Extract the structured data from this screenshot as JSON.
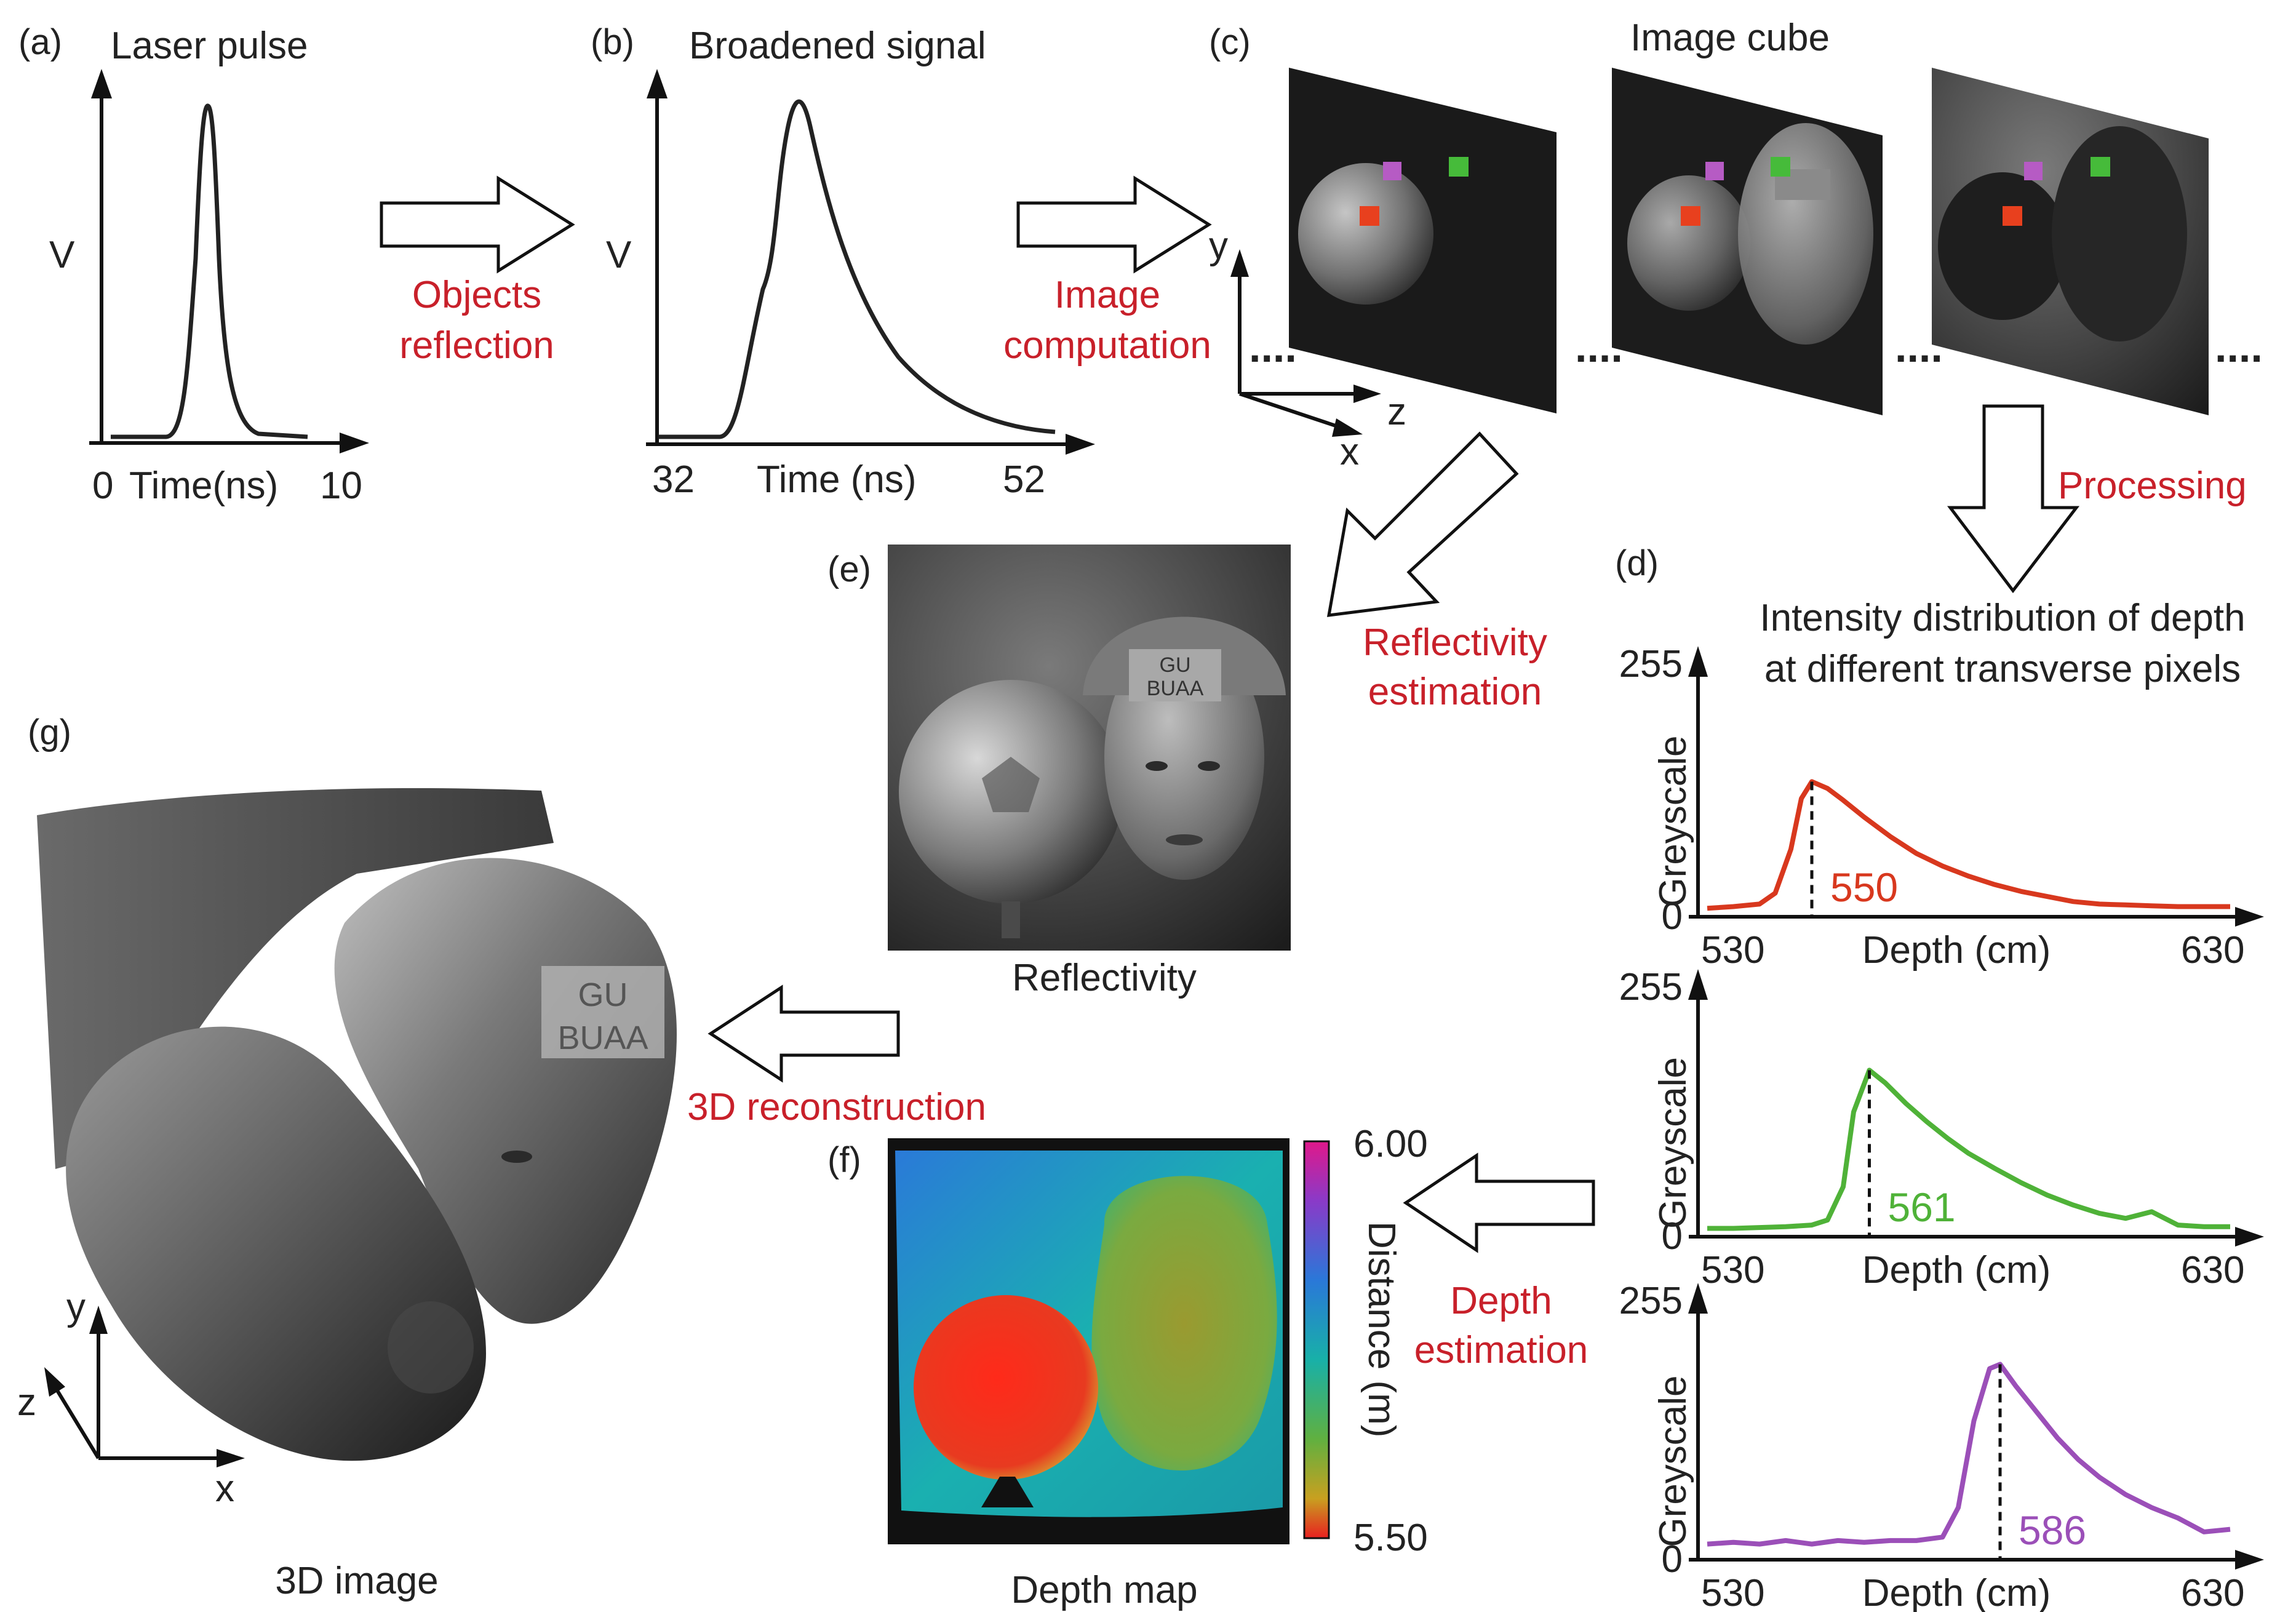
{
  "panels": {
    "a": {
      "tag": "(a)",
      "title": "Laser pulse",
      "ylabel": "V",
      "x_start": "0",
      "xlabel": "Time(ns)",
      "x_end": "10"
    },
    "b": {
      "tag": "(b)",
      "title": "Broadened signal",
      "ylabel": "V",
      "x_start": "32",
      "xlabel": "Time (ns)",
      "x_end": "52"
    },
    "c": {
      "tag": "(c)",
      "title": "Image cube",
      "axis_y": "y",
      "axis_z": "z",
      "axis_x": "x",
      "ellipsis": "...."
    },
    "d": {
      "tag": "(d)",
      "title_line1": "Intensity distribution of depth",
      "title_line2": "at different transverse pixels"
    },
    "e": {
      "tag": "(e)",
      "caption": "Reflectivity",
      "helmet_text_1": "GU",
      "helmet_text_2": "BUAA"
    },
    "f": {
      "tag": "(f)",
      "caption": "Depth map",
      "colorbar_top": "6.00",
      "colorbar_bottom": "5.50",
      "colorbar_label": "Distance (m)"
    },
    "g": {
      "tag": "(g)",
      "caption": "3D image",
      "axis_y": "y",
      "axis_z": "z",
      "axis_x": "x",
      "helmet_text_1": "GU",
      "helmet_text_2": "BUAA"
    }
  },
  "arrows": {
    "objects_reflection_1": "Objects",
    "objects_reflection_2": "reflection",
    "image_computation_1": "Image",
    "image_computation_2": "computation",
    "processing": "Processing",
    "reflectivity_estimation_1": "Reflectivity",
    "reflectivity_estimation_2": "estimation",
    "reconstruction": "3D reconstruction",
    "depth_estimation_1": "Depth",
    "depth_estimation_2": "estimation"
  },
  "chart_data": [
    {
      "type": "line",
      "name": "depth-profile-red",
      "ylabel": "Greyscale",
      "xlabel": "Depth (cm)",
      "y_ticks": [
        "255",
        "0"
      ],
      "x_ticks": [
        "530",
        "630"
      ],
      "xlim": [
        530,
        630
      ],
      "ylim": [
        0,
        255
      ],
      "color": "#d8381e",
      "peak_label": "550",
      "peak": [
        550,
        160
      ],
      "x": [
        530,
        535,
        540,
        543,
        546,
        548,
        550,
        553,
        556,
        560,
        565,
        570,
        575,
        580,
        585,
        590,
        595,
        600,
        605,
        610,
        615,
        620,
        625,
        630
      ],
      "y": [
        10,
        12,
        15,
        28,
        80,
        140,
        160,
        152,
        138,
        118,
        95,
        75,
        60,
        48,
        38,
        30,
        24,
        18,
        15,
        14,
        13,
        12,
        12,
        12
      ]
    },
    {
      "type": "line",
      "name": "depth-profile-green",
      "ylabel": "Greyscale",
      "xlabel": "Depth (cm)",
      "y_ticks": [
        "255",
        "0"
      ],
      "x_ticks": [
        "530",
        "630"
      ],
      "xlim": [
        530,
        630
      ],
      "ylim": [
        0,
        255
      ],
      "color": "#4fb238",
      "peak_label": "561",
      "peak": [
        561,
        200
      ],
      "x": [
        530,
        535,
        540,
        545,
        550,
        553,
        556,
        558,
        561,
        564,
        568,
        572,
        576,
        580,
        585,
        590,
        595,
        600,
        605,
        610,
        615,
        620,
        625,
        630
      ],
      "y": [
        10,
        10,
        11,
        12,
        14,
        20,
        60,
        150,
        200,
        185,
        160,
        138,
        118,
        100,
        82,
        65,
        50,
        38,
        28,
        22,
        30,
        14,
        12,
        12
      ]
    },
    {
      "type": "line",
      "name": "depth-profile-purple",
      "ylabel": "Greyscale",
      "xlabel": "Depth (cm)",
      "y_ticks": [
        "255",
        "0"
      ],
      "x_ticks": [
        "530",
        "630"
      ],
      "xlim": [
        530,
        630
      ],
      "ylim": [
        0,
        255
      ],
      "color": "#9b4fb8",
      "peak_label": "586",
      "peak": [
        586,
        225
      ],
      "x": [
        530,
        535,
        540,
        545,
        550,
        555,
        560,
        565,
        570,
        575,
        578,
        581,
        584,
        586,
        589,
        593,
        597,
        601,
        605,
        610,
        615,
        620,
        625,
        630
      ],
      "y": [
        18,
        20,
        18,
        22,
        18,
        22,
        20,
        22,
        22,
        26,
        60,
        160,
        220,
        225,
        200,
        170,
        140,
        115,
        95,
        75,
        60,
        48,
        32,
        35
      ]
    }
  ]
}
